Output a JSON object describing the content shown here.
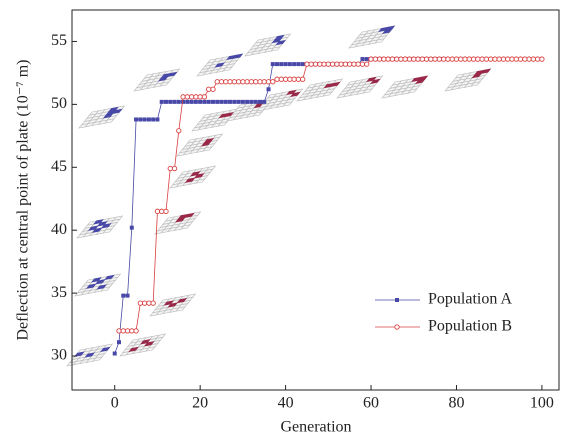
{
  "chart_data": {
    "type": "line",
    "x_label": "Generation",
    "y_label": "Deflection at central point of plate (10⁻⁷ m)",
    "xlim": [
      -10,
      104
    ],
    "xticks": [
      0,
      20,
      40,
      60,
      80,
      100
    ],
    "ylim": [
      27.3,
      57.5
    ],
    "yticks": [
      30,
      35,
      40,
      45,
      50,
      55
    ],
    "legend": "lower-right",
    "series": [
      {
        "name": "Population A",
        "color": "#4848a8",
        "marker": "square",
        "x": [
          0,
          1,
          2,
          3,
          4,
          5,
          6,
          7,
          8,
          9,
          10,
          11,
          12,
          13,
          14,
          15,
          16,
          17,
          18,
          19,
          20,
          21,
          22,
          23,
          24,
          25,
          26,
          27,
          28,
          29,
          30,
          31,
          32,
          33,
          34,
          35,
          36,
          37,
          38,
          39,
          40,
          41,
          42,
          43,
          44,
          45,
          46,
          47,
          48,
          49,
          50,
          51,
          52,
          53,
          54,
          55,
          56,
          57,
          58,
          59,
          60,
          61,
          62,
          63,
          64,
          65,
          66,
          67,
          68,
          69,
          70,
          71,
          72,
          73,
          74,
          75,
          76,
          77
        ],
        "values": [
          30.2,
          31.1,
          34.8,
          34.8,
          40.2,
          48.8,
          48.8,
          48.8,
          48.8,
          48.8,
          48.8,
          50.2,
          50.2,
          50.2,
          50.2,
          50.2,
          50.2,
          50.2,
          50.2,
          50.2,
          50.2,
          50.2,
          50.2,
          50.2,
          50.2,
          50.2,
          50.2,
          50.2,
          50.2,
          50.2,
          50.2,
          50.2,
          50.2,
          50.2,
          50.2,
          50.2,
          51.2,
          53.2,
          53.2,
          53.2,
          53.2,
          53.2,
          53.2,
          53.2,
          53.2,
          53.2,
          53.2,
          53.2,
          53.2,
          53.2,
          53.2,
          53.2,
          53.2,
          53.2,
          53.2,
          53.2,
          53.2,
          53.2,
          53.6,
          53.6,
          53.6,
          53.6,
          53.6,
          53.6,
          53.6,
          53.6,
          53.6,
          53.6,
          53.6,
          53.6,
          53.6,
          53.6,
          53.6,
          53.6,
          53.6,
          53.6,
          53.6,
          53.6
        ]
      },
      {
        "name": "Population B",
        "color": "#d84040",
        "marker": "circle",
        "x": [
          1,
          2,
          3,
          4,
          5,
          6,
          7,
          8,
          9,
          10,
          11,
          12,
          13,
          14,
          15,
          16,
          17,
          18,
          19,
          20,
          21,
          22,
          23,
          24,
          25,
          26,
          27,
          28,
          29,
          30,
          31,
          32,
          33,
          34,
          35,
          36,
          37,
          38,
          39,
          40,
          41,
          42,
          43,
          44,
          45,
          46,
          47,
          48,
          49,
          50,
          51,
          52,
          53,
          54,
          55,
          56,
          57,
          58,
          59,
          60,
          61,
          62,
          63,
          64,
          65,
          66,
          67,
          68,
          69,
          70,
          71,
          72,
          73,
          74,
          75,
          76,
          77,
          78,
          79,
          80,
          81,
          82,
          83,
          84,
          85,
          86,
          87,
          88,
          89,
          90,
          91,
          92,
          93,
          94,
          95,
          96,
          97,
          98,
          99,
          100
        ],
        "values": [
          32.0,
          32.0,
          32.0,
          32.0,
          32.0,
          34.2,
          34.2,
          34.2,
          34.2,
          41.5,
          41.5,
          41.5,
          44.9,
          44.9,
          47.9,
          50.6,
          50.6,
          50.6,
          50.6,
          50.6,
          50.6,
          51.2,
          51.2,
          51.8,
          51.8,
          51.8,
          51.8,
          51.8,
          51.8,
          51.8,
          51.8,
          51.8,
          51.8,
          51.8,
          51.8,
          51.8,
          51.8,
          52.0,
          52.0,
          52.0,
          52.0,
          52.0,
          52.0,
          52.0,
          53.2,
          53.2,
          53.2,
          53.2,
          53.2,
          53.2,
          53.2,
          53.2,
          53.2,
          53.2,
          53.2,
          53.2,
          53.2,
          53.2,
          53.2,
          53.6,
          53.6,
          53.6,
          53.6,
          53.6,
          53.6,
          53.6,
          53.6,
          53.6,
          53.6,
          53.6,
          53.6,
          53.6,
          53.6,
          53.6,
          53.6,
          53.6,
          53.6,
          53.6,
          53.6,
          53.6,
          53.6,
          53.6,
          53.6,
          53.6,
          53.6,
          53.6,
          53.6,
          53.6,
          53.6,
          53.6,
          53.6,
          53.6,
          53.6,
          53.6,
          53.6,
          53.6,
          53.6,
          53.6,
          53.6,
          53.6
        ]
      }
    ]
  }
}
